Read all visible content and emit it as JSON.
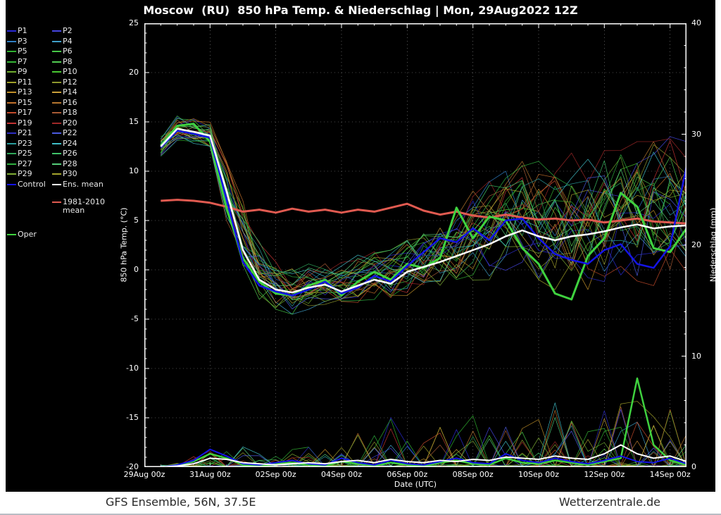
{
  "title": "Moscow  (RU)  850 hPa Temp. & Niederschlag | Mon, 29Aug2022 12Z",
  "footer": {
    "left": "GFS Ensemble, 56N, 37.5E",
    "right": "Wetterzentrale.de"
  },
  "axes": {
    "left_label": "850 hPa Temp. (°C)",
    "right_label": "Niederschlag (mm)",
    "x_label": "Date (UTC)",
    "temp_ticks": [
      25,
      20,
      15,
      10,
      5,
      0,
      -5,
      -10,
      -15,
      -20
    ],
    "precip_ticks": [
      40,
      30,
      20,
      10,
      0
    ],
    "x_ticks": [
      "29Aug 00z",
      "31Aug 00z",
      "02Sep 00z",
      "04Sep 00z",
      "06Sep 00z",
      "08Sep 00z",
      "10Sep 00z",
      "12Sep 00z",
      "14Sep 00z"
    ],
    "x_tick_days": [
      0,
      2,
      4,
      6,
      8,
      10,
      12,
      14,
      16
    ],
    "temp_range": [
      -20,
      25
    ],
    "precip_range": [
      0,
      40
    ],
    "x_range_days": [
      0,
      16.5
    ]
  },
  "legend": {
    "members": [
      {
        "label": "P1",
        "color": "#2929d6"
      },
      {
        "label": "P2",
        "color": "#4545e0"
      },
      {
        "label": "P3",
        "color": "#2f7ec2"
      },
      {
        "label": "P4",
        "color": "#3fa0c8"
      },
      {
        "label": "P5",
        "color": "#2fb02f"
      },
      {
        "label": "P6",
        "color": "#46c846"
      },
      {
        "label": "P7",
        "color": "#35b535"
      },
      {
        "label": "P8",
        "color": "#52cd52"
      },
      {
        "label": "P9",
        "color": "#6fae2f"
      },
      {
        "label": "P10",
        "color": "#49c832"
      },
      {
        "label": "P11",
        "color": "#a0a028"
      },
      {
        "label": "P12",
        "color": "#8f982d"
      },
      {
        "label": "P13",
        "color": "#c08f28"
      },
      {
        "label": "P14",
        "color": "#c9a03a"
      },
      {
        "label": "P15",
        "color": "#c2702a"
      },
      {
        "label": "P16",
        "color": "#b5762f"
      },
      {
        "label": "P17",
        "color": "#c24a2a"
      },
      {
        "label": "P18",
        "color": "#a85a35"
      },
      {
        "label": "P19",
        "color": "#c43232"
      },
      {
        "label": "P20",
        "color": "#a02828"
      },
      {
        "label": "P21",
        "color": "#2d2dc4"
      },
      {
        "label": "P22",
        "color": "#4b5ae0"
      },
      {
        "label": "P23",
        "color": "#2a9d9d"
      },
      {
        "label": "P24",
        "color": "#3fbec8"
      },
      {
        "label": "P25",
        "color": "#2fa85a"
      },
      {
        "label": "P26",
        "color": "#3fc46a"
      },
      {
        "label": "P27",
        "color": "#2fb040"
      },
      {
        "label": "P28",
        "color": "#55cd7a"
      },
      {
        "label": "P29",
        "color": "#7fae35"
      },
      {
        "label": "P30",
        "color": "#a5a52d"
      }
    ],
    "control": {
      "label": "Control",
      "color": "#1414e6"
    },
    "ens_mean": {
      "label": "Ens. mean",
      "color": "#ffffff"
    },
    "clim_mean": {
      "label_line1": "1981-2010",
      "label_line2": "mean",
      "color": "#e05a50"
    },
    "oper": {
      "label": "Oper",
      "color": "#3fd23f"
    }
  },
  "chart_data": {
    "type": "line",
    "x_unit": "days since 29Aug2022 00z",
    "x_days": [
      0.5,
      1,
      1.5,
      2,
      2.5,
      3,
      3.5,
      4,
      4.5,
      5,
      5.5,
      6,
      6.5,
      7,
      7.5,
      8,
      8.5,
      9,
      9.5,
      10,
      10.5,
      11,
      11.5,
      12,
      12.5,
      13,
      13.5,
      14,
      14.5,
      15,
      15.5,
      16,
      16.5
    ],
    "series": [
      {
        "name": "1981-2010 mean",
        "color": "#e05a50",
        "width": 3,
        "values": [
          7.0,
          7.1,
          7.0,
          6.8,
          6.4,
          5.9,
          6.1,
          5.8,
          6.2,
          5.9,
          6.1,
          5.8,
          6.1,
          5.9,
          6.3,
          6.7,
          6.0,
          5.6,
          5.9,
          5.5,
          5.3,
          5.6,
          5.3,
          5.1,
          5.2,
          5.0,
          5.1,
          4.8,
          5.0,
          5.2,
          4.9,
          4.8,
          4.7
        ]
      },
      {
        "name": "Oper",
        "color": "#3fd23f",
        "width": 3,
        "values": [
          12.6,
          14.6,
          14.8,
          13.0,
          6.2,
          1.2,
          -1.2,
          -2.4,
          -2.6,
          -1.6,
          -1.0,
          -2.6,
          -1.2,
          -0.2,
          -1.0,
          0.6,
          0.2,
          1.2,
          6.3,
          3.2,
          5.4,
          5.0,
          2.2,
          0.6,
          -2.4,
          -3.0,
          1.4,
          3.2,
          7.8,
          6.4,
          2.2,
          1.8,
          4.2
        ]
      },
      {
        "name": "Control",
        "color": "#1414e6",
        "width": 2.5,
        "values": [
          12.4,
          14.1,
          13.8,
          13.4,
          7.2,
          0.8,
          -1.6,
          -2.2,
          -2.6,
          -2.0,
          -1.2,
          -2.4,
          -1.8,
          -0.6,
          -1.2,
          0.4,
          1.8,
          3.2,
          2.8,
          4.2,
          3.0,
          5.0,
          5.2,
          3.2,
          1.6,
          1.0,
          0.6,
          2.0,
          2.6,
          0.6,
          0.2,
          2.4,
          10.5
        ]
      },
      {
        "name": "Ens. mean",
        "color": "#ffffff",
        "width": 2.5,
        "values": [
          12.5,
          14.3,
          14.0,
          13.6,
          8.0,
          2.0,
          -1.0,
          -2.0,
          -2.3,
          -1.8,
          -1.5,
          -2.2,
          -1.6,
          -1.0,
          -1.4,
          -0.2,
          0.3,
          0.8,
          1.4,
          2.0,
          2.6,
          3.4,
          4.0,
          3.4,
          3.0,
          3.4,
          3.6,
          3.9,
          4.3,
          4.6,
          4.2,
          4.4,
          4.5
        ]
      }
    ],
    "ensemble_envelope": {
      "min": [
        11.5,
        13.0,
        12.6,
        12.0,
        5.0,
        -1.0,
        -3.0,
        -4.0,
        -4.5,
        -4.0,
        -3.5,
        -4.2,
        -3.6,
        -3.0,
        -3.5,
        -2.6,
        -2.2,
        -2.0,
        -1.6,
        -1.2,
        -1.0,
        -0.6,
        -0.2,
        -1.0,
        -2.0,
        -1.6,
        -2.0,
        -1.2,
        -1.0,
        -2.0,
        -1.6,
        -1.0,
        -0.2
      ],
      "max": [
        13.5,
        15.6,
        15.5,
        15.0,
        11.0,
        7.0,
        3.0,
        1.0,
        0.2,
        0.6,
        1.0,
        1.0,
        1.5,
        2.0,
        2.0,
        3.0,
        4.0,
        5.0,
        6.0,
        8.0,
        9.0,
        10.0,
        11.0,
        11.0,
        11.5,
        12.0,
        12.0,
        12.5,
        13.0,
        13.0,
        13.0,
        13.5,
        13.0
      ]
    },
    "precip": {
      "member_max": [
        0.2,
        0.4,
        1.0,
        2.2,
        2.6,
        2.0,
        1.4,
        1.0,
        1.6,
        2.0,
        1.6,
        2.4,
        3.6,
        3.0,
        4.8,
        3.0,
        2.6,
        4.0,
        3.6,
        5.0,
        4.0,
        6.0,
        5.0,
        4.6,
        6.0,
        5.0,
        4.2,
        6.0,
        8.0,
        6.0,
        5.0,
        7.5,
        3.0
      ],
      "series": [
        {
          "name": "Oper precip",
          "color": "#3fd23f",
          "width": 2.5,
          "values": [
            0,
            0.2,
            0.5,
            1.2,
            0.8,
            0.2,
            0.1,
            0.3,
            0.4,
            0.2,
            0.1,
            0.5,
            0.3,
            0.1,
            0.4,
            0.2,
            0.1,
            0.4,
            0.6,
            0.3,
            0.2,
            0.8,
            0.4,
            0.3,
            0.6,
            0.4,
            0.2,
            0.5,
            0.8,
            8.0,
            2.0,
            0.6,
            0.2
          ]
        },
        {
          "name": "Control precip",
          "color": "#1414e6",
          "width": 2,
          "values": [
            0,
            0.2,
            0.6,
            1.6,
            1.0,
            0.3,
            0.2,
            0.4,
            0.6,
            0.3,
            0.2,
            0.8,
            0.4,
            0.2,
            0.6,
            0.3,
            0.2,
            0.5,
            0.8,
            0.4,
            0.3,
            1.2,
            0.6,
            0.4,
            0.8,
            0.5,
            0.3,
            0.6,
            1.0,
            0.5,
            0.4,
            0.8,
            0.3
          ]
        },
        {
          "name": "Ens. mean precip",
          "color": "#ffffff",
          "width": 2,
          "values": [
            0,
            0.1,
            0.3,
            0.8,
            0.7,
            0.4,
            0.3,
            0.2,
            0.3,
            0.4,
            0.3,
            0.5,
            0.6,
            0.4,
            0.7,
            0.5,
            0.4,
            0.6,
            0.5,
            0.7,
            0.6,
            0.9,
            0.8,
            0.7,
            1.0,
            0.8,
            0.7,
            1.2,
            2.0,
            1.2,
            0.8,
            1.0,
            0.5
          ]
        }
      ]
    }
  }
}
